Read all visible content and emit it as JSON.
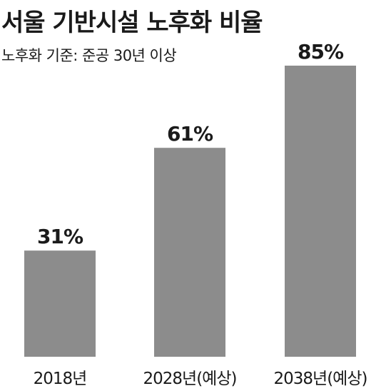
{
  "title": "서울 기반시설 노후화 비율",
  "subtitle": "노후화 기준: 준공 30년 이상",
  "colors": {
    "bar": "#8c8c8c",
    "text": "#1a1a1a"
  },
  "chart_data": {
    "type": "bar",
    "title": "서울 기반시설 노후화 비율",
    "subtitle": "노후화 기준: 준공 30년 이상",
    "categories": [
      "2018년",
      "2028년(예상)",
      "2038년(예상)"
    ],
    "values": [
      31,
      61,
      85
    ],
    "value_labels": [
      "31%",
      "61%",
      "85%"
    ],
    "unit": "%",
    "ylim": [
      0,
      100
    ],
    "grid": false,
    "legend": "none"
  }
}
